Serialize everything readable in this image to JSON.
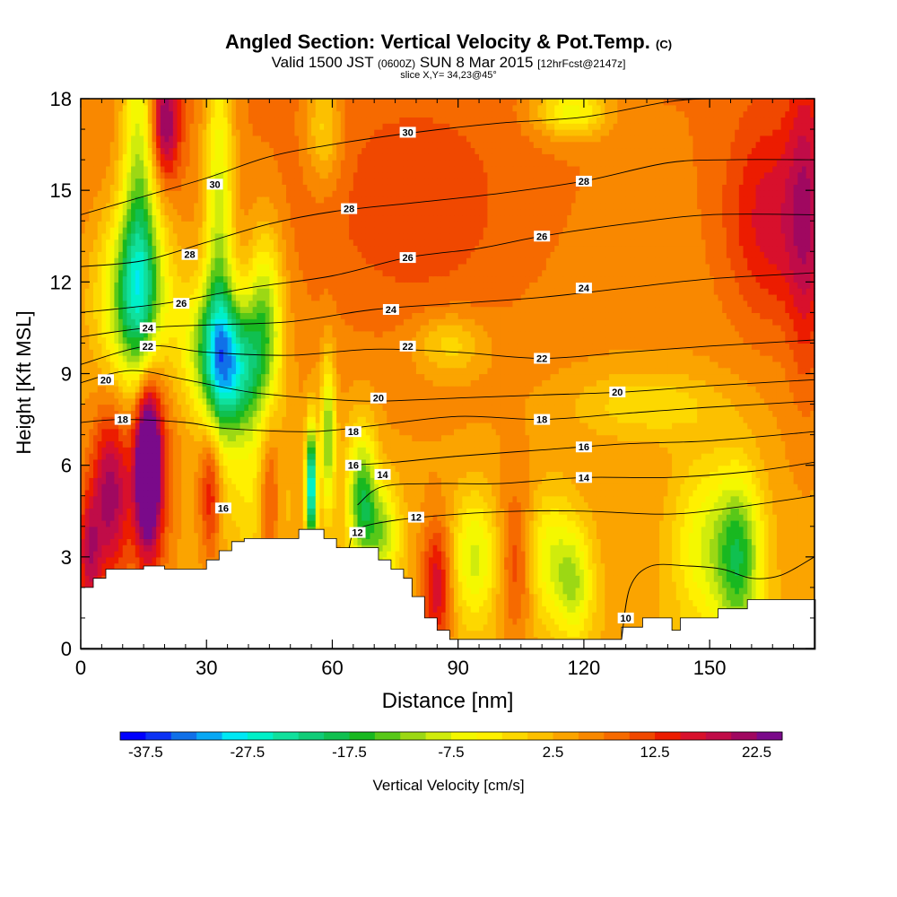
{
  "header": {
    "title_main": "Angled Section: Vertical Velocity & Pot.Temp.",
    "title_mark": "(C)",
    "valid_prefix": "Valid 1500 JST",
    "valid_zulu": "(0600Z)",
    "valid_date": "SUN 8 Mar 2015",
    "forecast_tag": "[12hrFcst@2147z]",
    "slice": "slice X,Y= 34,23@45°"
  },
  "chart_data": {
    "type": "heatmap",
    "title": "Angled Section: Vertical Velocity & Pot.Temp.",
    "xlabel": "Distance [nm]",
    "ylabel": "Height [Kft MSL]",
    "xlim": [
      0,
      175
    ],
    "ylim": [
      0,
      18
    ],
    "x_ticks": [
      0,
      30,
      60,
      90,
      120,
      150
    ],
    "y_ticks": [
      0,
      3,
      6,
      9,
      12,
      15,
      18
    ],
    "grid": false,
    "fill_variable": "Vertical Velocity [cm/s]",
    "colorbar": {
      "label": "Vertical Velocity [cm/s]",
      "min": -40,
      "step": 2.5,
      "tick_labels": [
        "-37.5",
        "-27.5",
        "-17.5",
        "-7.5",
        "2.5",
        "12.5",
        "22.5"
      ],
      "tick_values": [
        -37.5,
        -27.5,
        -17.5,
        -7.5,
        2.5,
        12.5,
        22.5
      ],
      "colors": [
        "#0000ff",
        "#0c32f4",
        "#1070e8",
        "#08a8f4",
        "#00e8f4",
        "#00f0c8",
        "#10e09c",
        "#10cc78",
        "#10c050",
        "#18b820",
        "#58c818",
        "#9cd814",
        "#d0ec0c",
        "#f4f800",
        "#fff000",
        "#fdd800",
        "#fcc000",
        "#fba400",
        "#f98800",
        "#f66a00",
        "#f04800",
        "#ec1c00",
        "#d8102c",
        "#c00c48",
        "#a00860",
        "#7a0a8a"
      ]
    },
    "contour_variable": "Pot.Temp. (C)",
    "contours": [
      {
        "level": 10,
        "label": "10",
        "label_pos": [
          130,
          1.0
        ],
        "pts": [
          [
            129,
            0.3
          ],
          [
            131,
            2.0
          ],
          [
            136,
            2.7
          ],
          [
            145,
            2.7
          ],
          [
            153,
            2.6
          ],
          [
            160,
            2.3
          ],
          [
            167,
            2.4
          ],
          [
            175,
            3.0
          ]
        ]
      },
      {
        "level": 12,
        "label": "12",
        "label_pos": [
          80,
          4.3
        ],
        "pts": [
          [
            64,
            3.3
          ],
          [
            66,
            3.9
          ],
          [
            75,
            4.2
          ],
          [
            90,
            4.4
          ],
          [
            105,
            4.5
          ],
          [
            120,
            4.5
          ],
          [
            140,
            4.4
          ],
          [
            155,
            4.6
          ],
          [
            175,
            5.0
          ]
        ]
      },
      {
        "level": 14,
        "label": "14",
        "label_pos": [
          120,
          5.6
        ],
        "pts": [
          [
            66,
            4.7
          ],
          [
            72,
            5.3
          ],
          [
            85,
            5.4
          ],
          [
            100,
            5.4
          ],
          [
            120,
            5.6
          ],
          [
            140,
            5.6
          ],
          [
            160,
            5.8
          ],
          [
            175,
            6.1
          ]
        ]
      },
      {
        "level": 16,
        "label": "16",
        "label_pos": [
          120,
          6.6
        ],
        "pts": [
          [
            64,
            6.0
          ],
          [
            75,
            6.1
          ],
          [
            90,
            6.3
          ],
          [
            110,
            6.5
          ],
          [
            130,
            6.7
          ],
          [
            150,
            6.8
          ],
          [
            175,
            7.1
          ]
        ]
      },
      {
        "level": 18,
        "label": "18",
        "label_pos": [
          110,
          7.5
        ],
        "pts": [
          [
            0,
            7.4
          ],
          [
            10,
            7.5
          ],
          [
            25,
            7.4
          ],
          [
            35,
            7.2
          ],
          [
            55,
            7.1
          ],
          [
            70,
            7.3
          ],
          [
            90,
            7.6
          ],
          [
            110,
            7.5
          ],
          [
            130,
            7.7
          ],
          [
            150,
            7.9
          ],
          [
            175,
            8.1
          ]
        ]
      },
      {
        "level": 20,
        "label": "20",
        "label_pos": [
          128,
          8.4
        ],
        "pts": [
          [
            0,
            8.7
          ],
          [
            12,
            9.1
          ],
          [
            25,
            8.8
          ],
          [
            40,
            8.4
          ],
          [
            55,
            8.2
          ],
          [
            70,
            8.1
          ],
          [
            90,
            8.2
          ],
          [
            110,
            8.3
          ],
          [
            130,
            8.4
          ],
          [
            150,
            8.6
          ],
          [
            175,
            8.8
          ]
        ]
      },
      {
        "level": 22,
        "label": "22",
        "label_pos": [
          110,
          9.5
        ],
        "pts": [
          [
            0,
            9.3
          ],
          [
            16,
            9.9
          ],
          [
            30,
            9.7
          ],
          [
            50,
            9.6
          ],
          [
            70,
            9.8
          ],
          [
            90,
            9.7
          ],
          [
            110,
            9.5
          ],
          [
            130,
            9.7
          ],
          [
            150,
            9.9
          ],
          [
            175,
            10.1
          ]
        ]
      },
      {
        "level": 24,
        "label": "24",
        "label_pos": [
          120,
          11.8
        ],
        "pts": [
          [
            0,
            10.2
          ],
          [
            16,
            10.5
          ],
          [
            32,
            10.6
          ],
          [
            50,
            10.7
          ],
          [
            70,
            11.1
          ],
          [
            90,
            11.3
          ],
          [
            110,
            11.5
          ],
          [
            130,
            11.8
          ],
          [
            150,
            12.1
          ],
          [
            175,
            12.3
          ]
        ]
      },
      {
        "level": 26,
        "label": "26",
        "label_pos": [
          110,
          13.5
        ],
        "pts": [
          [
            0,
            11.0
          ],
          [
            20,
            11.3
          ],
          [
            40,
            11.8
          ],
          [
            60,
            12.2
          ],
          [
            78,
            12.8
          ],
          [
            95,
            13.1
          ],
          [
            110,
            13.5
          ],
          [
            130,
            13.9
          ],
          [
            150,
            14.2
          ],
          [
            175,
            14.2
          ]
        ]
      },
      {
        "level": 28,
        "label": "28",
        "label_pos": [
          120,
          15.3
        ],
        "pts": [
          [
            0,
            12.5
          ],
          [
            15,
            12.7
          ],
          [
            30,
            13.3
          ],
          [
            45,
            13.9
          ],
          [
            60,
            14.3
          ],
          [
            80,
            14.6
          ],
          [
            100,
            14.9
          ],
          [
            120,
            15.3
          ],
          [
            140,
            15.9
          ],
          [
            155,
            16.0
          ],
          [
            175,
            16.0
          ]
        ]
      },
      {
        "level": 30,
        "label": "30",
        "label_pos": [
          78,
          16.9
        ],
        "pts": [
          [
            0,
            14.2
          ],
          [
            15,
            14.8
          ],
          [
            30,
            15.4
          ],
          [
            45,
            16.1
          ],
          [
            60,
            16.5
          ],
          [
            80,
            16.9
          ],
          [
            100,
            17.2
          ],
          [
            120,
            17.4
          ],
          [
            140,
            17.9
          ],
          [
            150,
            18.0
          ]
        ]
      }
    ],
    "contour_extra_labels": [
      {
        "label": "30",
        "pos": [
          32,
          15.2
        ]
      },
      {
        "label": "28",
        "pos": [
          64,
          14.4
        ]
      },
      {
        "label": "28",
        "pos": [
          26,
          12.9
        ]
      },
      {
        "label": "26",
        "pos": [
          78,
          12.8
        ]
      },
      {
        "label": "26",
        "pos": [
          24,
          11.3
        ]
      },
      {
        "label": "24",
        "pos": [
          74,
          11.1
        ]
      },
      {
        "label": "24",
        "pos": [
          16,
          10.5
        ]
      },
      {
        "label": "22",
        "pos": [
          78,
          9.9
        ]
      },
      {
        "label": "22",
        "pos": [
          16,
          9.9
        ]
      },
      {
        "label": "20",
        "pos": [
          6,
          8.8
        ]
      },
      {
        "label": "20",
        "pos": [
          71,
          8.2
        ]
      },
      {
        "label": "18",
        "pos": [
          10,
          7.5
        ]
      },
      {
        "label": "18",
        "pos": [
          65,
          7.1
        ]
      },
      {
        "label": "16",
        "pos": [
          65,
          6.0
        ]
      },
      {
        "label": "16",
        "pos": [
          34,
          4.6
        ]
      },
      {
        "label": "14",
        "pos": [
          72,
          5.7
        ]
      },
      {
        "label": "12",
        "pos": [
          66,
          3.8
        ]
      }
    ],
    "terrain_nm_kft": [
      [
        0,
        2.0
      ],
      [
        3,
        2.0
      ],
      [
        3,
        2.3
      ],
      [
        6,
        2.3
      ],
      [
        6,
        2.6
      ],
      [
        15,
        2.6
      ],
      [
        15,
        2.7
      ],
      [
        20,
        2.7
      ],
      [
        20,
        2.6
      ],
      [
        30,
        2.6
      ],
      [
        30,
        2.9
      ],
      [
        33,
        2.9
      ],
      [
        33,
        3.2
      ],
      [
        36,
        3.2
      ],
      [
        36,
        3.5
      ],
      [
        39,
        3.5
      ],
      [
        39,
        3.6
      ],
      [
        52,
        3.6
      ],
      [
        52,
        3.9
      ],
      [
        58,
        3.9
      ],
      [
        58,
        3.6
      ],
      [
        61,
        3.6
      ],
      [
        61,
        3.3
      ],
      [
        71,
        3.3
      ],
      [
        71,
        2.9
      ],
      [
        74,
        2.9
      ],
      [
        74,
        2.6
      ],
      [
        77,
        2.6
      ],
      [
        77,
        2.3
      ],
      [
        79,
        2.3
      ],
      [
        79,
        1.7
      ],
      [
        82,
        1.7
      ],
      [
        82,
        1.0
      ],
      [
        85,
        1.0
      ],
      [
        85,
        0.6
      ],
      [
        88,
        0.6
      ],
      [
        88,
        0.3
      ],
      [
        129,
        0.3
      ],
      [
        129,
        0.7
      ],
      [
        134,
        0.7
      ],
      [
        134,
        1.0
      ],
      [
        141,
        1.0
      ],
      [
        141,
        0.6
      ],
      [
        143,
        0.6
      ],
      [
        143,
        1.0
      ],
      [
        152,
        1.0
      ],
      [
        152,
        1.3
      ],
      [
        159,
        1.3
      ],
      [
        159,
        1.6
      ],
      [
        175,
        1.6
      ]
    ],
    "features": [
      {
        "w": -17,
        "x": 14,
        "y": 15,
        "sx": 3,
        "sy": 5
      },
      {
        "w": -22,
        "x": 13,
        "y": 11.5,
        "sx": 6,
        "sy": 2
      },
      {
        "w": -16,
        "x": 33,
        "y": 14,
        "sx": 2.5,
        "sy": 4.5
      },
      {
        "w": -25,
        "x": 37,
        "y": 9,
        "sx": 5,
        "sy": 1.6
      },
      {
        "w": -16,
        "x": 44,
        "y": 11,
        "sx": 3,
        "sy": 2
      },
      {
        "w": -15,
        "x": 31,
        "y": 10,
        "sx": 5,
        "sy": 1.5
      },
      {
        "w": -7,
        "x": 42,
        "y": 5,
        "sx": 5,
        "sy": 1.5
      },
      {
        "w": -20,
        "x": 67,
        "y": 5,
        "sx": 2.5,
        "sy": 1.6
      },
      {
        "w": -35,
        "x": 55,
        "y": 5.3,
        "sx": 0.9,
        "sy": 1.4
      },
      {
        "w": -18,
        "x": 59,
        "y": 7,
        "sx": 1.2,
        "sy": 1.8
      },
      {
        "w": -14,
        "x": 72,
        "y": 3.8,
        "sx": 3,
        "sy": 1.2
      },
      {
        "w": -12,
        "x": 94,
        "y": 3,
        "sx": 4,
        "sy": 1.5
      },
      {
        "w": -11,
        "x": 112,
        "y": 3,
        "sx": 5,
        "sy": 1.5
      },
      {
        "w": -20,
        "x": 157,
        "y": 3,
        "sx": 4,
        "sy": 2
      },
      {
        "w": -10,
        "x": 148,
        "y": 3.5,
        "sx": 5,
        "sy": 2
      },
      {
        "w": -10,
        "x": 118,
        "y": 2,
        "sx": 3,
        "sy": 1.2
      },
      {
        "w": -14,
        "x": 117,
        "y": 17.6,
        "sx": 6,
        "sy": 0.6
      },
      {
        "w": -9,
        "x": 58,
        "y": 17,
        "sx": 3,
        "sy": 1.3
      },
      {
        "w": -8,
        "x": 88,
        "y": 10,
        "sx": 6,
        "sy": 0.7
      },
      {
        "w": -7,
        "x": 135,
        "y": 8,
        "sx": 12,
        "sy": 0.8
      },
      {
        "w": 27,
        "x": 16,
        "y": 6,
        "sx": 1.8,
        "sy": 1.6
      },
      {
        "w": 16,
        "x": 16,
        "y": 6,
        "sx": 3.5,
        "sy": 2.8
      },
      {
        "w": 17,
        "x": 7,
        "y": 5,
        "sx": 3,
        "sy": 2
      },
      {
        "w": 14,
        "x": 2,
        "y": 3,
        "sx": 2,
        "sy": 1.5
      },
      {
        "w": 17,
        "x": 20,
        "y": 17.2,
        "sx": 2.5,
        "sy": 1.3
      },
      {
        "w": 12,
        "x": 45,
        "y": 5,
        "sx": 1.8,
        "sy": 1.6
      },
      {
        "w": 12,
        "x": 31,
        "y": 5.2,
        "sx": 1.8,
        "sy": 1.6
      },
      {
        "w": 14,
        "x": 85,
        "y": 2,
        "sx": 2.5,
        "sy": 1.5
      },
      {
        "w": 10,
        "x": 104,
        "y": 2.8,
        "sx": 3,
        "sy": 1.8
      },
      {
        "w": 10,
        "x": 165,
        "y": 14,
        "sx": 8,
        "sy": 2.5
      },
      {
        "w": 9,
        "x": 173,
        "y": 14,
        "sx": 3,
        "sy": 4
      },
      {
        "w": 5,
        "x": 80,
        "y": 14,
        "sx": 20,
        "sy": 3
      }
    ]
  }
}
